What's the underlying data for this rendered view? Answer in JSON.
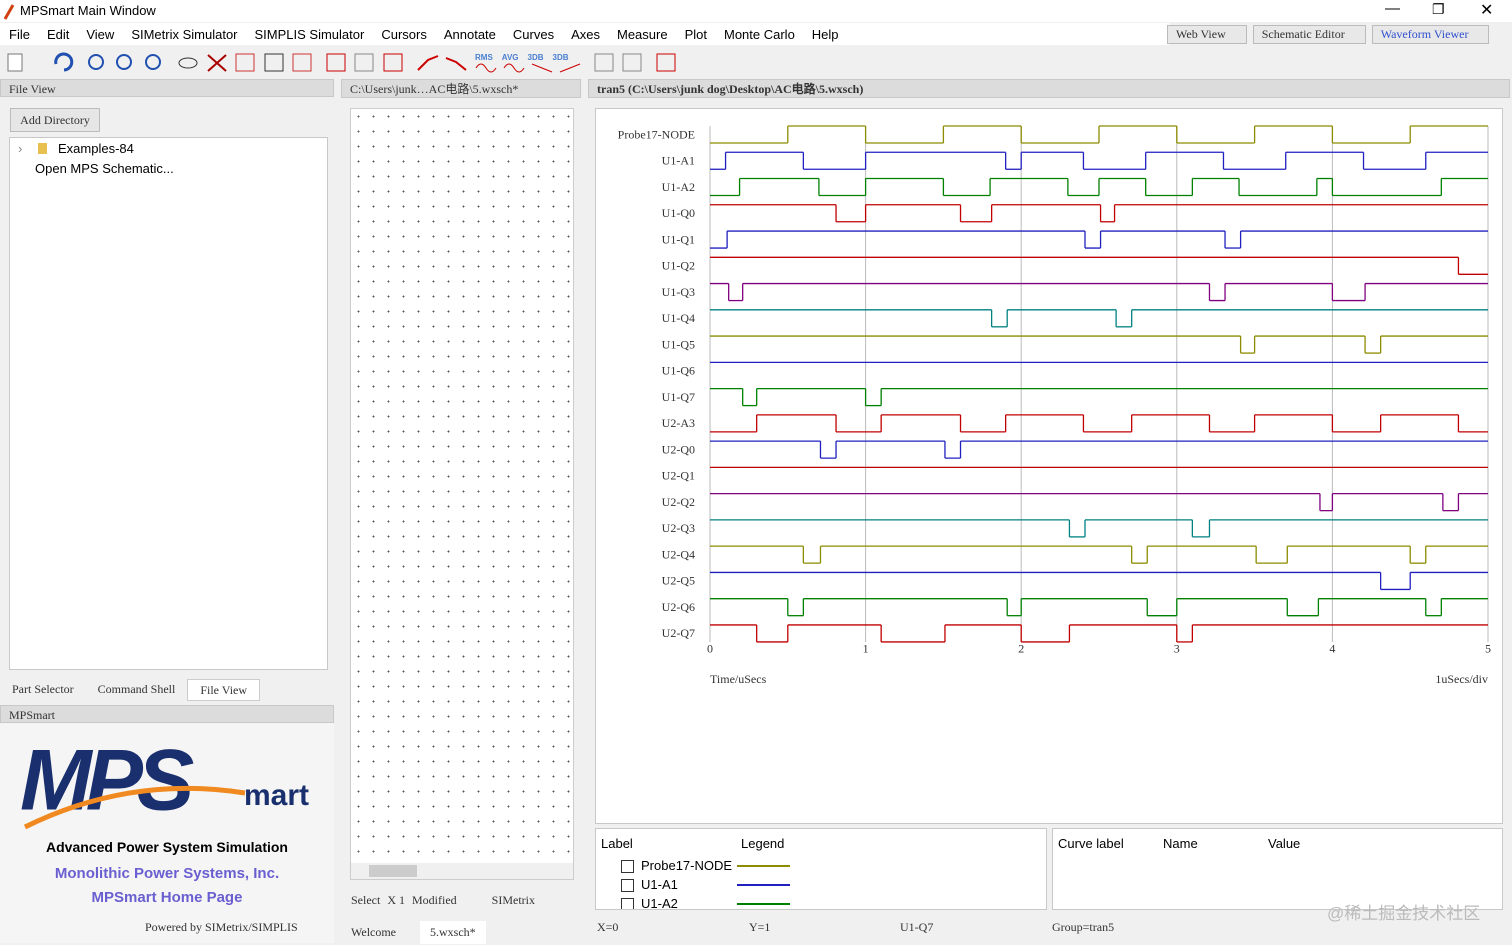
{
  "window": {
    "title": "MPSmart Main Window",
    "menu": [
      "File",
      "Edit",
      "View",
      "SIMetrix Simulator",
      "SIMPLIS Simulator",
      "Cursors",
      "Annotate",
      "Curves",
      "Axes",
      "Measure",
      "Plot",
      "Monte Carlo",
      "Help"
    ],
    "view_buttons": [
      "Web View",
      "Schematic Editor",
      "Waveform Viewer"
    ],
    "toolbar_labels": [
      "RMS",
      "AVG",
      "3DB",
      "3DB"
    ]
  },
  "file_view": {
    "header": "File View",
    "add_directory": "Add Directory",
    "tree": [
      "Examples-84",
      "Open MPS Schematic..."
    ],
    "tabs": [
      "Part Selector",
      "Command Shell",
      "File View"
    ]
  },
  "mpsmart": {
    "header": "MPSmart",
    "logo_mps": "MPS",
    "logo_mart": "mart",
    "tagline": "Advanced Power System Simulation",
    "company": "Monolithic Power Systems, Inc.",
    "home": "MPSmart Home Page",
    "powered": "Powered by SIMetrix/SIMPLIS"
  },
  "schematic": {
    "tab": "C:\\Users\\junk…AC电路\\5.wxsch*",
    "status": [
      "Select",
      "X 1",
      "Modified",
      "SIMetrix"
    ],
    "tabs": [
      "Welcome",
      "5.wxsch*"
    ]
  },
  "chart_data": {
    "type": "step",
    "title": "tran5  (C:\\Users\\junk dog\\Desktop\\AC电路\\5.wxsch)",
    "x_label": "Time/uSecs",
    "x_scale_label": "1uSecs/div",
    "xlim": [
      0,
      5
    ],
    "xticks": [
      0,
      1,
      2,
      3,
      4,
      5
    ],
    "ylim": [
      0,
      1
    ],
    "grid": true,
    "series": [
      {
        "name": "Probe17-NODE",
        "color": "#8c8c00",
        "x": [
          0,
          0.5,
          1,
          1.5,
          2,
          2.5,
          3,
          3.5,
          4,
          4.5
        ],
        "values": [
          0,
          1,
          0,
          1,
          0,
          1,
          0,
          1,
          0,
          1
        ]
      },
      {
        "name": "U1-A1",
        "color": "#2020c0",
        "x": [
          0,
          0.1,
          0.6,
          1,
          1.9,
          2,
          2.4,
          2.8,
          3.3,
          3.7,
          4.2,
          4.6
        ],
        "values": [
          0,
          1,
          0,
          1,
          0,
          1,
          0,
          1,
          0,
          1,
          0,
          1
        ]
      },
      {
        "name": "U1-A2",
        "color": "#008000",
        "x": [
          0,
          0.19,
          0.7,
          1,
          1.5,
          1.8,
          2.3,
          2.5,
          2.8,
          3.1,
          3.4,
          3.9,
          4,
          4.7
        ],
        "values": [
          0,
          1,
          0,
          1,
          0,
          1,
          0,
          1,
          0,
          1,
          0,
          1,
          0,
          1
        ]
      },
      {
        "name": "U1-Q0",
        "color": "#c00000",
        "x": [
          0,
          0.81,
          1,
          1.61,
          1.81,
          2.51,
          2.6
        ],
        "values": [
          1,
          0,
          1,
          0,
          1,
          0,
          1
        ]
      },
      {
        "name": "U1-Q1",
        "color": "#2020c0",
        "x": [
          0,
          0.11,
          2.41,
          2.51,
          3.31,
          3.41
        ],
        "values": [
          0,
          1,
          0,
          1,
          0,
          1
        ]
      },
      {
        "name": "U1-Q2",
        "color": "#c00000",
        "x": [
          0,
          4.81
        ],
        "values": [
          1,
          0
        ]
      },
      {
        "name": "U1-Q3",
        "color": "#800080",
        "x": [
          0,
          0.12,
          0.21,
          3.21,
          3.31,
          4,
          4.21
        ],
        "values": [
          1,
          0,
          1,
          0,
          1,
          0,
          1
        ]
      },
      {
        "name": "U1-Q4",
        "color": "#008080",
        "x": [
          0,
          1.81,
          1.91,
          2.61,
          2.71
        ],
        "values": [
          1,
          0,
          1,
          0,
          1
        ]
      },
      {
        "name": "U1-Q5",
        "color": "#8c8c00",
        "x": [
          0,
          3.41,
          3.5,
          4.21,
          4.31
        ],
        "values": [
          1,
          0,
          1,
          0,
          1
        ]
      },
      {
        "name": "U1-Q6",
        "color": "#2020c0",
        "x": [
          0
        ],
        "values": [
          1
        ]
      },
      {
        "name": "U1-Q7",
        "color": "#008000",
        "x": [
          0,
          0.21,
          0.3,
          1,
          1.1
        ],
        "values": [
          1,
          0,
          1,
          0,
          1
        ]
      },
      {
        "name": "U2-A3",
        "color": "#c00000",
        "x": [
          0,
          0.3,
          0.81,
          1.1,
          1.61,
          1.9,
          2.4,
          2.71,
          3.21,
          3.5,
          4,
          4.31,
          4.81
        ],
        "values": [
          0,
          1,
          0,
          1,
          0,
          1,
          0,
          1,
          0,
          1,
          0,
          1,
          0
        ]
      },
      {
        "name": "U2-Q0",
        "color": "#2020c0",
        "x": [
          0,
          0.71,
          0.81,
          1.51,
          1.61
        ],
        "values": [
          1,
          0,
          1,
          0,
          1
        ]
      },
      {
        "name": "U2-Q1",
        "color": "#c00000",
        "x": [
          0
        ],
        "values": [
          1
        ]
      },
      {
        "name": "U2-Q2",
        "color": "#800080",
        "x": [
          0,
          3.92,
          4,
          4.71,
          4.81
        ],
        "values": [
          1,
          0,
          1,
          0,
          1
        ]
      },
      {
        "name": "U2-Q3",
        "color": "#008080",
        "x": [
          0,
          2.31,
          2.41,
          3.1,
          3.21
        ],
        "values": [
          1,
          0,
          1,
          0,
          1
        ]
      },
      {
        "name": "U2-Q4",
        "color": "#8c8c00",
        "x": [
          0,
          0.6,
          0.71,
          2.71,
          2.81,
          3.51,
          3.71,
          4.5,
          4.6
        ],
        "values": [
          1,
          0,
          1,
          0,
          1,
          0,
          1,
          0,
          1
        ]
      },
      {
        "name": "U2-Q5",
        "color": "#2020c0",
        "x": [
          0,
          4.31,
          4.5
        ],
        "values": [
          1,
          0,
          1
        ]
      },
      {
        "name": "U2-Q6",
        "color": "#008000",
        "x": [
          0,
          0.5,
          0.6,
          1.91,
          2,
          2.81,
          3,
          3.71,
          3.91,
          4.6,
          4.7
        ],
        "values": [
          1,
          0,
          1,
          0,
          1,
          0,
          1,
          0,
          1,
          0,
          1
        ]
      },
      {
        "name": "U2-Q7",
        "color": "#c00000",
        "x": [
          0,
          0.3,
          0.5,
          1.1,
          1.51,
          2,
          2.31,
          3,
          3.1
        ],
        "values": [
          1,
          0,
          1,
          0,
          1,
          0,
          1,
          0,
          1
        ]
      }
    ]
  },
  "legend_panel": {
    "headers": [
      "Label",
      "Legend"
    ]
  },
  "cursor_panel": {
    "headers": [
      "Curve label",
      "Name",
      "Value"
    ]
  },
  "status": [
    "X=0",
    "Y=1",
    "U1-Q7",
    "Group=tran5"
  ],
  "watermark": "@稀土掘金技术社区"
}
